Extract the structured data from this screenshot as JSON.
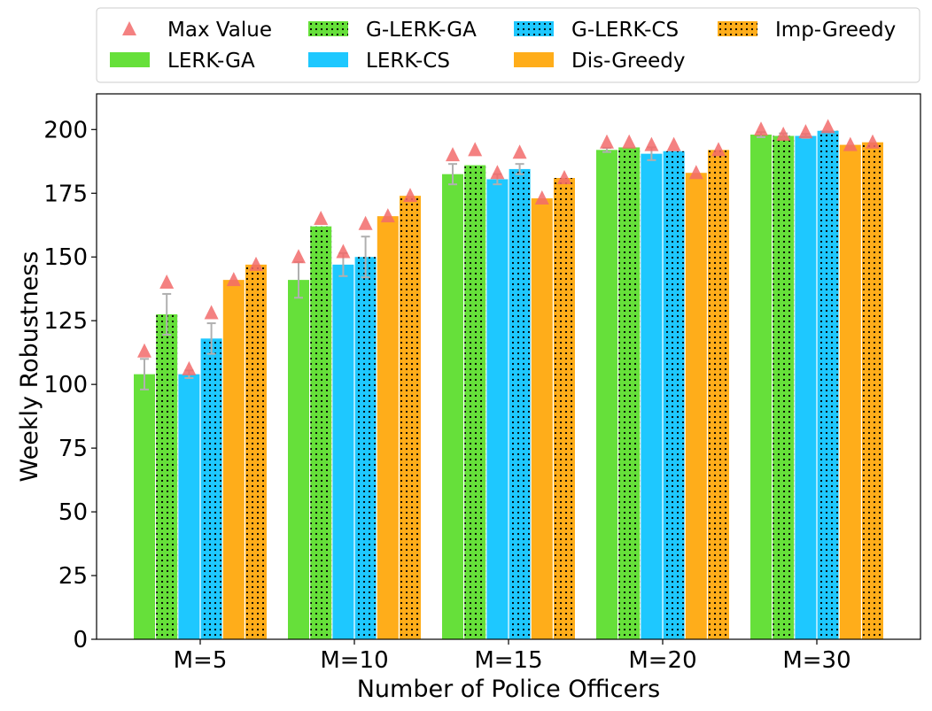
{
  "chart_data": {
    "type": "bar",
    "xlabel": "Number of Police Officers",
    "ylabel": "Weekly Robustness",
    "ylim": [
      0,
      214
    ],
    "yticks": [
      0,
      25,
      50,
      75,
      100,
      125,
      150,
      175,
      200
    ],
    "categories": [
      "M=5",
      "M=10",
      "M=15",
      "M=20",
      "M=30"
    ],
    "legend_position": "top (above plot)",
    "series": [
      {
        "name": "LERK-GA",
        "color": "#66e03a",
        "hatch": false,
        "values": [
          104,
          141,
          182.5,
          192,
          198
        ],
        "err": [
          6,
          7,
          4,
          0.8,
          1
        ]
      },
      {
        "name": "G-LERK-GA",
        "color": "#66e03a",
        "hatch": true,
        "values": [
          127.5,
          162,
          186,
          193,
          197.5
        ],
        "err": [
          8,
          0,
          0,
          0,
          1
        ]
      },
      {
        "name": "LERK-CS",
        "color": "#1ec8ff",
        "hatch": false,
        "values": [
          104,
          147,
          180.5,
          190.5,
          197.5
        ],
        "err": [
          1.5,
          4.5,
          2,
          2.5,
          0.8
        ]
      },
      {
        "name": "G-LERK-CS",
        "color": "#1ec8ff",
        "hatch": true,
        "values": [
          118,
          150,
          184.5,
          191.5,
          199.5
        ],
        "err": [
          6,
          8,
          2,
          0,
          0
        ]
      },
      {
        "name": "Dis-Greedy",
        "color": "#ffad1a",
        "hatch": false,
        "values": [
          141,
          166,
          173,
          183,
          194
        ],
        "err": [
          0,
          0,
          0,
          0,
          0
        ]
      },
      {
        "name": "Imp-Greedy",
        "color": "#ffad1a",
        "hatch": true,
        "values": [
          147,
          174,
          181,
          192,
          195
        ],
        "err": [
          0,
          0,
          0,
          0,
          0
        ]
      }
    ],
    "max_value": {
      "name": "Max Value",
      "color": "#f26b6b",
      "values": [
        [
          113,
          140,
          106,
          128,
          141,
          147
        ],
        [
          150,
          165,
          152,
          163,
          166,
          174
        ],
        [
          190,
          192,
          183,
          191,
          173,
          181
        ],
        [
          195,
          195,
          194,
          194,
          183,
          192
        ],
        [
          200,
          198,
          199,
          201,
          194,
          195
        ]
      ]
    }
  }
}
